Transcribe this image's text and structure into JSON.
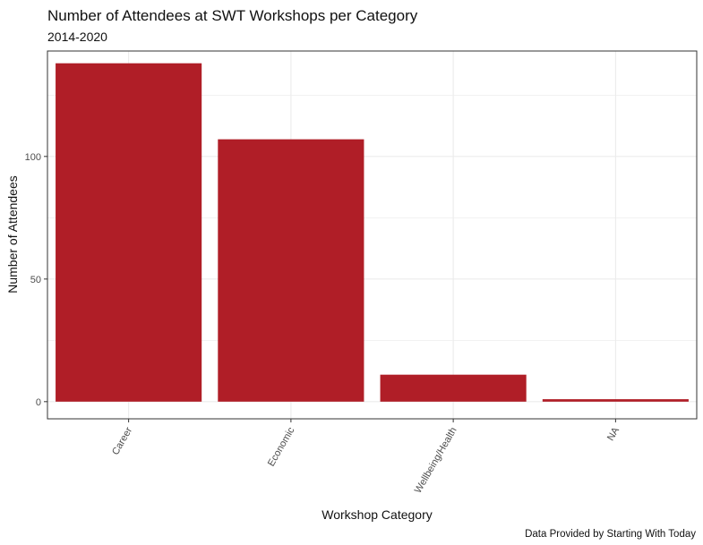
{
  "chart_data": {
    "type": "bar",
    "title": "Number of Attendees at SWT Workshops per Category",
    "subtitle": "2014-2020",
    "xlabel": "Workshop Category",
    "ylabel": "Number of Attendees",
    "caption": "Data Provided by Starting With Today",
    "categories": [
      "Career",
      "Economic",
      "Wellbeing/Health",
      "NA"
    ],
    "values": [
      138,
      107,
      11,
      1
    ],
    "ylim": [
      -7,
      143
    ],
    "yticks": [
      0,
      50,
      100
    ],
    "bar_color": "#B01E27",
    "grid": true,
    "theme": "bw",
    "x_tick_rotation_deg": -60
  }
}
